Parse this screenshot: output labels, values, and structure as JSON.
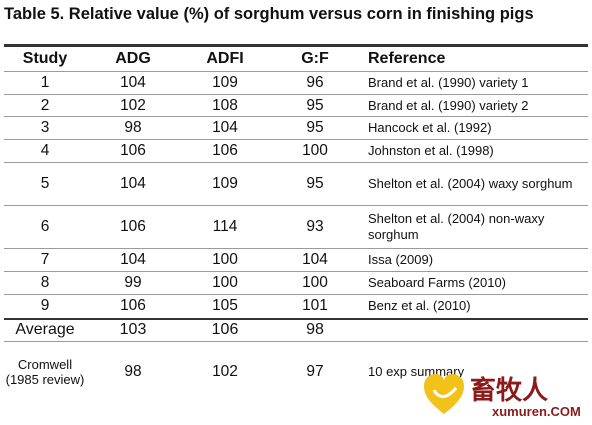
{
  "table": {
    "title": "Table 5. Relative value (%) of sorghum versus corn in finishing pigs",
    "headers": [
      "Study",
      "ADG",
      "ADFI",
      "G:F",
      "Reference"
    ],
    "rows": [
      {
        "study": "1",
        "adg": "104",
        "adfi": "109",
        "gf": "96",
        "reference": "Brand et al. (1990) variety 1"
      },
      {
        "study": "2",
        "adg": "102",
        "adfi": "108",
        "gf": "95",
        "reference": "Brand et al. (1990) variety 2"
      },
      {
        "study": "3",
        "adg": "98",
        "adfi": "104",
        "gf": "95",
        "reference": "Hancock et al. (1992)"
      },
      {
        "study": "4",
        "adg": "106",
        "adfi": "106",
        "gf": "100",
        "reference": "Johnston et al. (1998)"
      },
      {
        "study": "5",
        "adg": "104",
        "adfi": "109",
        "gf": "95",
        "reference": "Shelton et al. (2004) waxy sorghum"
      },
      {
        "study": "6",
        "adg": "106",
        "adfi": "114",
        "gf": "93",
        "reference": "Shelton et al. (2004) non-waxy sorghum"
      },
      {
        "study": "7",
        "adg": "104",
        "adfi": "100",
        "gf": "104",
        "reference": "Issa (2009)"
      },
      {
        "study": "8",
        "adg": "99",
        "adfi": "100",
        "gf": "100",
        "reference": "Seaboard Farms (2010)"
      },
      {
        "study": "9",
        "adg": "106",
        "adfi": "105",
        "gf": "101",
        "reference": "Benz et al. (2010)"
      }
    ],
    "average": {
      "study": "Average",
      "adg": "103",
      "adfi": "106",
      "gf": "98",
      "reference": ""
    },
    "cromwell": {
      "study": "Cromwell (1985 review)",
      "adg": "98",
      "adfi": "102",
      "gf": "97",
      "reference": "10 exp summary"
    }
  },
  "watermark": {
    "text_cn": "畜牧人",
    "text_en": "xumuren.COM",
    "heart_color": "#f2c21b",
    "text_color": "#8b1a1a"
  }
}
